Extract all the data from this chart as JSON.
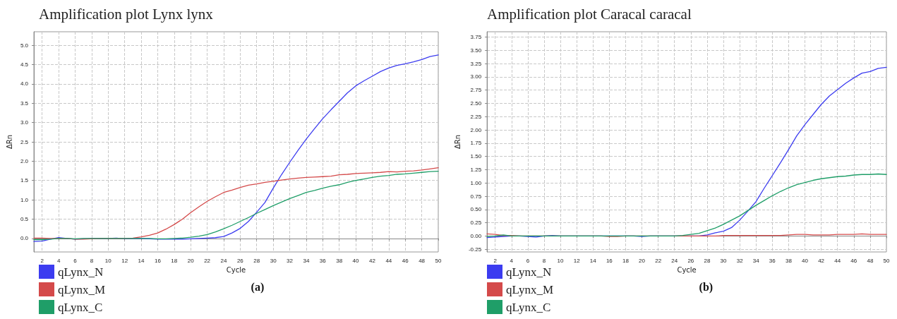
{
  "chart_data": [
    {
      "type": "line",
      "title": "Amplification plot Lynx lynx",
      "xlabel": "Cycle",
      "ylabel": "ΔRn",
      "annotations": [
        "(a)"
      ],
      "grid": true,
      "legend": "bottom left",
      "marker": "none",
      "line_style": "solid",
      "x": [
        1,
        2,
        3,
        4,
        5,
        6,
        7,
        8,
        9,
        10,
        11,
        12,
        13,
        14,
        15,
        16,
        17,
        18,
        19,
        20,
        21,
        22,
        23,
        24,
        25,
        26,
        27,
        28,
        29,
        30,
        31,
        32,
        33,
        34,
        35,
        36,
        37,
        38,
        39,
        40,
        41,
        42,
        43,
        44,
        45,
        46,
        47,
        48,
        49,
        50
      ],
      "xlim": [
        1,
        50
      ],
      "xticks": [
        2,
        4,
        6,
        8,
        10,
        12,
        14,
        16,
        18,
        20,
        22,
        24,
        26,
        28,
        30,
        32,
        34,
        36,
        38,
        40,
        42,
        44,
        46,
        48,
        50
      ],
      "ylim": [
        -0.35,
        5.35
      ],
      "yticks": [
        {
          "value": 0,
          "label": "0.0"
        },
        0.5,
        {
          "value": 1,
          "label": "1.0"
        },
        1.5,
        {
          "value": 2,
          "label": "2.0"
        },
        2.5,
        {
          "value": 3,
          "label": "3.0"
        },
        3.5,
        {
          "value": 4,
          "label": "4.0"
        },
        4.5,
        {
          "value": 5,
          "label": "5.0"
        }
      ],
      "series": [
        {
          "name": "qLynx_N",
          "color": "#3c3cf0",
          "values": [
            -0.08,
            -0.07,
            -0.02,
            0.02,
            0,
            -0.02,
            -0.01,
            0,
            0,
            0,
            0.01,
            -0.01,
            0,
            0,
            -0.01,
            -0.02,
            -0.02,
            -0.02,
            -0.02,
            -0.01,
            0,
            0.01,
            0.02,
            0.05,
            0.14,
            0.26,
            0.44,
            0.68,
            0.93,
            1.3,
            1.65,
            1.97,
            2.28,
            2.57,
            2.84,
            3.1,
            3.33,
            3.55,
            3.77,
            3.95,
            4.08,
            4.2,
            4.32,
            4.41,
            4.48,
            4.52,
            4.57,
            4.63,
            4.71,
            4.75
          ]
        },
        {
          "name": "qLynx_M",
          "color": "#d44a4a",
          "values": [
            0.01,
            0.01,
            0,
            0,
            0,
            -0.02,
            -0.02,
            -0.01,
            0,
            0,
            0,
            0,
            0.01,
            0.04,
            0.08,
            0.14,
            0.24,
            0.36,
            0.5,
            0.67,
            0.82,
            0.96,
            1.08,
            1.19,
            1.25,
            1.32,
            1.38,
            1.41,
            1.45,
            1.48,
            1.51,
            1.54,
            1.56,
            1.58,
            1.59,
            1.6,
            1.61,
            1.65,
            1.66,
            1.68,
            1.69,
            1.7,
            1.71,
            1.73,
            1.72,
            1.74,
            1.75,
            1.77,
            1.8,
            1.83
          ]
        },
        {
          "name": "qLynx_C",
          "color": "#1f9e68",
          "values": [
            -0.03,
            -0.03,
            -0.02,
            0,
            0,
            -0.01,
            0,
            0,
            0,
            0,
            0,
            0,
            0,
            0,
            0,
            -0.01,
            -0.01,
            0,
            0.01,
            0.03,
            0.06,
            0.1,
            0.17,
            0.25,
            0.34,
            0.44,
            0.54,
            0.65,
            0.75,
            0.85,
            0.94,
            1.03,
            1.11,
            1.19,
            1.24,
            1.3,
            1.35,
            1.39,
            1.45,
            1.5,
            1.54,
            1.58,
            1.61,
            1.63,
            1.66,
            1.67,
            1.69,
            1.71,
            1.73,
            1.74
          ]
        }
      ]
    },
    {
      "type": "line",
      "title": "Amplification plot Caracal caracal",
      "xlabel": "Cycle",
      "ylabel": "ΔRn",
      "annotations": [
        "(b)"
      ],
      "grid": true,
      "legend": "bottom left",
      "marker": "none",
      "line_style": "solid",
      "x": [
        1,
        2,
        3,
        4,
        5,
        6,
        7,
        8,
        9,
        10,
        11,
        12,
        13,
        14,
        15,
        16,
        17,
        18,
        19,
        20,
        21,
        22,
        23,
        24,
        25,
        26,
        27,
        28,
        29,
        30,
        31,
        32,
        33,
        34,
        35,
        36,
        37,
        38,
        39,
        40,
        41,
        42,
        43,
        44,
        45,
        46,
        47,
        48,
        49,
        50
      ],
      "xlim": [
        1,
        50
      ],
      "xticks": [
        2,
        4,
        6,
        8,
        10,
        12,
        14,
        16,
        18,
        20,
        22,
        24,
        26,
        28,
        30,
        32,
        34,
        36,
        38,
        40,
        42,
        44,
        46,
        48,
        50
      ],
      "ylim": [
        -0.3,
        3.85
      ],
      "yticks": [
        -0.25,
        {
          "value": 0,
          "label": "0.00"
        },
        0.25,
        {
          "value": 0.5,
          "label": "0.50"
        },
        0.75,
        {
          "value": 1,
          "label": "1.00"
        },
        1.25,
        {
          "value": 1.5,
          "label": "1.50"
        },
        1.75,
        {
          "value": 2,
          "label": "2.00"
        },
        2.25,
        {
          "value": 2.5,
          "label": "2.50"
        },
        2.75,
        {
          "value": 3,
          "label": "3.00"
        },
        3.25,
        {
          "value": 3.5,
          "label": "3.50"
        },
        3.75
      ],
      "series": [
        {
          "name": "qLynx_N",
          "color": "#3c3cf0",
          "values": [
            -0.03,
            -0.02,
            -0.01,
            0,
            0,
            -0.01,
            -0.02,
            0,
            0.01,
            0,
            0,
            0,
            0,
            0,
            0,
            0,
            0,
            0,
            0,
            -0.01,
            0,
            0,
            0,
            0,
            0,
            0,
            0,
            0.02,
            0.06,
            0.09,
            0.16,
            0.3,
            0.47,
            0.65,
            0.9,
            1.14,
            1.38,
            1.63,
            1.89,
            2.1,
            2.29,
            2.48,
            2.64,
            2.76,
            2.88,
            2.98,
            3.07,
            3.1,
            3.16,
            3.18
          ]
        },
        {
          "name": "qLynx_M",
          "color": "#d44a4a",
          "values": [
            0.04,
            0.03,
            0.01,
            0.01,
            0,
            0,
            0,
            0,
            0,
            0,
            0,
            0,
            0,
            0,
            0,
            -0.01,
            -0.01,
            0,
            0,
            0,
            0,
            0,
            0,
            0,
            0,
            0,
            0,
            0,
            0,
            0.01,
            0.01,
            0.01,
            0.01,
            0.01,
            0.01,
            0.01,
            0.01,
            0.02,
            0.03,
            0.03,
            0.02,
            0.02,
            0.02,
            0.03,
            0.03,
            0.03,
            0.04,
            0.03,
            0.03,
            0.03
          ]
        },
        {
          "name": "qLynx_C",
          "color": "#1f9e68",
          "values": [
            -0.01,
            0,
            0.02,
            0,
            0,
            0,
            0,
            0,
            0,
            0,
            0,
            0,
            0,
            0,
            0,
            0,
            0,
            0,
            0,
            0,
            0,
            0,
            0,
            0,
            0.01,
            0.03,
            0.05,
            0.1,
            0.15,
            0.22,
            0.3,
            0.38,
            0.48,
            0.58,
            0.67,
            0.76,
            0.84,
            0.91,
            0.97,
            1.01,
            1.05,
            1.08,
            1.1,
            1.12,
            1.13,
            1.15,
            1.16,
            1.16,
            1.17,
            1.16
          ]
        }
      ]
    }
  ]
}
